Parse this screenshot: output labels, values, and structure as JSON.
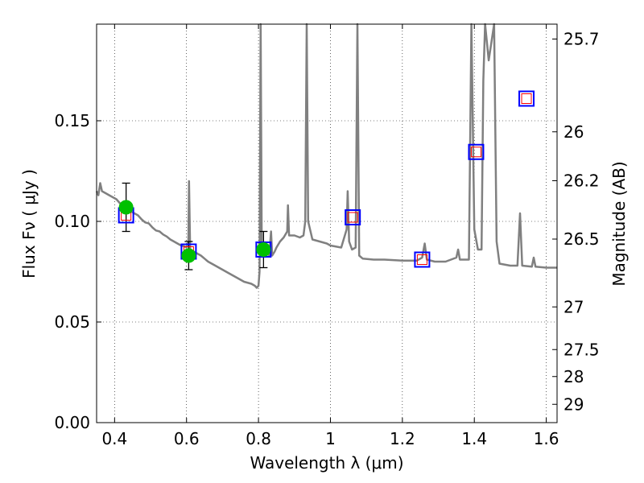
{
  "chart_data": {
    "type": "line",
    "xlabel": "Wavelength  λ (μm)",
    "ylabel": "Flux  Fν  ( μJy )",
    "y2label": "Magnitude (AB)",
    "xlim": [
      0.35,
      1.63
    ],
    "ylim": [
      0.0,
      0.198
    ],
    "grid": true,
    "x_ticks": [
      0.4,
      0.6,
      0.8,
      1.0,
      1.2,
      1.4,
      1.6
    ],
    "x_tick_labels": [
      "0.4",
      "0.6",
      "0.8",
      "1",
      "1.2",
      "1.4",
      "1.6"
    ],
    "y_ticks": [
      0.0,
      0.05,
      0.1,
      0.15
    ],
    "y_tick_labels": [
      "0.00",
      "0.05",
      "0.10",
      "0.15"
    ],
    "y2_ticks": [
      {
        "label": "25.7",
        "flux": 0.1906
      },
      {
        "label": "26",
        "flux": 0.1445
      },
      {
        "label": "26.2",
        "flux": 0.1202
      },
      {
        "label": "26.5",
        "flux": 0.0912
      },
      {
        "label": "27",
        "flux": 0.0575
      },
      {
        "label": "27.5",
        "flux": 0.0363
      },
      {
        "label": "28",
        "flux": 0.0229
      },
      {
        "label": "29",
        "flux": 0.0091
      }
    ],
    "series": [
      {
        "type": "line",
        "color": "#808080",
        "points": [
          [
            0.35,
            0.115
          ],
          [
            0.355,
            0.113
          ],
          [
            0.36,
            0.119
          ],
          [
            0.365,
            0.115
          ],
          [
            0.375,
            0.114
          ],
          [
            0.385,
            0.113
          ],
          [
            0.395,
            0.112
          ],
          [
            0.405,
            0.111
          ],
          [
            0.415,
            0.109
          ],
          [
            0.425,
            0.107
          ],
          [
            0.435,
            0.106
          ],
          [
            0.445,
            0.105
          ],
          [
            0.455,
            0.104
          ],
          [
            0.465,
            0.103
          ],
          [
            0.475,
            0.101
          ],
          [
            0.485,
            0.0995
          ],
          [
            0.495,
            0.099
          ],
          [
            0.505,
            0.097
          ],
          [
            0.515,
            0.0955
          ],
          [
            0.525,
            0.095
          ],
          [
            0.535,
            0.0935
          ],
          [
            0.545,
            0.0925
          ],
          [
            0.555,
            0.091
          ],
          [
            0.565,
            0.09
          ],
          [
            0.575,
            0.089
          ],
          [
            0.585,
            0.088
          ],
          [
            0.595,
            0.0875
          ],
          [
            0.6,
            0.087
          ],
          [
            0.605,
            0.09
          ],
          [
            0.607,
            0.12
          ],
          [
            0.61,
            0.086
          ],
          [
            0.62,
            0.085
          ],
          [
            0.64,
            0.083
          ],
          [
            0.66,
            0.08
          ],
          [
            0.68,
            0.078
          ],
          [
            0.7,
            0.076
          ],
          [
            0.72,
            0.074
          ],
          [
            0.74,
            0.072
          ],
          [
            0.76,
            0.07
          ],
          [
            0.78,
            0.069
          ],
          [
            0.79,
            0.068
          ],
          [
            0.795,
            0.067
          ],
          [
            0.8,
            0.068
          ],
          [
            0.803,
            0.075
          ],
          [
            0.806,
            0.2
          ],
          [
            0.809,
            0.09
          ],
          [
            0.815,
            0.085
          ],
          [
            0.83,
            0.083
          ],
          [
            0.835,
            0.095
          ],
          [
            0.838,
            0.083
          ],
          [
            0.845,
            0.085
          ],
          [
            0.85,
            0.087
          ],
          [
            0.86,
            0.09
          ],
          [
            0.87,
            0.092
          ],
          [
            0.88,
            0.095
          ],
          [
            0.882,
            0.108
          ],
          [
            0.885,
            0.093
          ],
          [
            0.9,
            0.093
          ],
          [
            0.915,
            0.092
          ],
          [
            0.925,
            0.093
          ],
          [
            0.93,
            0.1
          ],
          [
            0.934,
            0.2
          ],
          [
            0.938,
            0.1
          ],
          [
            0.95,
            0.091
          ],
          [
            0.97,
            0.09
          ],
          [
            0.99,
            0.089
          ],
          [
            1.0,
            0.088
          ],
          [
            1.03,
            0.087
          ],
          [
            1.045,
            0.096
          ],
          [
            1.048,
            0.115
          ],
          [
            1.052,
            0.09
          ],
          [
            1.06,
            0.086
          ],
          [
            1.07,
            0.087
          ],
          [
            1.075,
            0.2
          ],
          [
            1.08,
            0.083
          ],
          [
            1.09,
            0.0815
          ],
          [
            1.12,
            0.081
          ],
          [
            1.15,
            0.081
          ],
          [
            1.2,
            0.0805
          ],
          [
            1.24,
            0.0805
          ],
          [
            1.255,
            0.082
          ],
          [
            1.262,
            0.089
          ],
          [
            1.268,
            0.081
          ],
          [
            1.29,
            0.08
          ],
          [
            1.32,
            0.08
          ],
          [
            1.35,
            0.082
          ],
          [
            1.355,
            0.086
          ],
          [
            1.36,
            0.081
          ],
          [
            1.385,
            0.081
          ],
          [
            1.392,
            0.2
          ],
          [
            1.4,
            0.096
          ],
          [
            1.41,
            0.086
          ],
          [
            1.42,
            0.086
          ],
          [
            1.425,
            0.17
          ],
          [
            1.43,
            0.2
          ],
          [
            1.44,
            0.18
          ],
          [
            1.455,
            0.2
          ],
          [
            1.462,
            0.09
          ],
          [
            1.47,
            0.079
          ],
          [
            1.5,
            0.078
          ],
          [
            1.52,
            0.078
          ],
          [
            1.527,
            0.104
          ],
          [
            1.533,
            0.078
          ],
          [
            1.56,
            0.0775
          ],
          [
            1.565,
            0.082
          ],
          [
            1.57,
            0.0775
          ],
          [
            1.6,
            0.077
          ],
          [
            1.63,
            0.077
          ]
        ]
      }
    ],
    "observed": [
      {
        "x": 0.432,
        "y": 0.107,
        "err": 0.012,
        "color": "#00c000"
      },
      {
        "x": 0.606,
        "y": 0.083,
        "err": 0.007,
        "color": "#00c000"
      },
      {
        "x": 0.814,
        "y": 0.086,
        "err": 0.009,
        "color": "#00c000"
      }
    ],
    "model_points": [
      {
        "x": 0.432,
        "y": 0.103
      },
      {
        "x": 0.606,
        "y": 0.085
      },
      {
        "x": 0.814,
        "y": 0.086
      },
      {
        "x": 1.062,
        "y": 0.102
      },
      {
        "x": 1.255,
        "y": 0.081
      },
      {
        "x": 1.405,
        "y": 0.1345
      },
      {
        "x": 1.545,
        "y": 0.161
      }
    ],
    "model_outer_color": "#0000ff",
    "model_inner_color": "#ff0000"
  }
}
